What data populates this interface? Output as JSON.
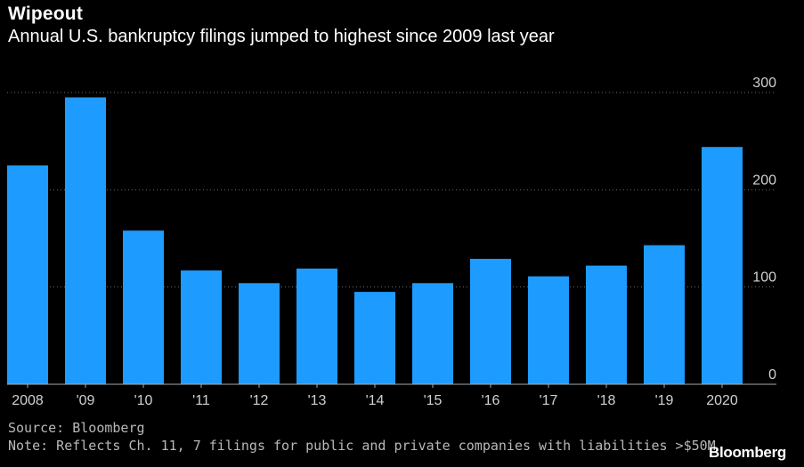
{
  "header": {
    "title": "Wipeout",
    "subtitle": "Annual U.S. bankruptcy filings jumped to highest since 2009 last year"
  },
  "footer": {
    "source": "Source: Bloomberg",
    "note": "Note: Reflects Ch. 11, 7 filings for public and private companies with liabilities >$50M",
    "brand": "Bloomberg"
  },
  "colors": {
    "bar": "#1e9bff",
    "grid": "#6e6e6e",
    "text": "#ffffff",
    "axis": "#aaaaaa"
  },
  "chart_data": {
    "type": "bar",
    "title": "Wipeout",
    "subtitle": "Annual U.S. bankruptcy filings jumped to highest since 2009 last year",
    "categories": [
      "2008",
      "'09",
      "'10",
      "'11",
      "'12",
      "'13",
      "'14",
      "'15",
      "'16",
      "'17",
      "'18",
      "'19",
      "2020"
    ],
    "values": [
      225,
      295,
      158,
      117,
      104,
      119,
      95,
      104,
      129,
      111,
      122,
      143,
      244
    ],
    "ylim": [
      0,
      300
    ],
    "yticks": [
      0,
      100,
      200,
      300
    ],
    "xlabel": "",
    "ylabel": "",
    "grid": true,
    "y_axis_side": "right"
  }
}
